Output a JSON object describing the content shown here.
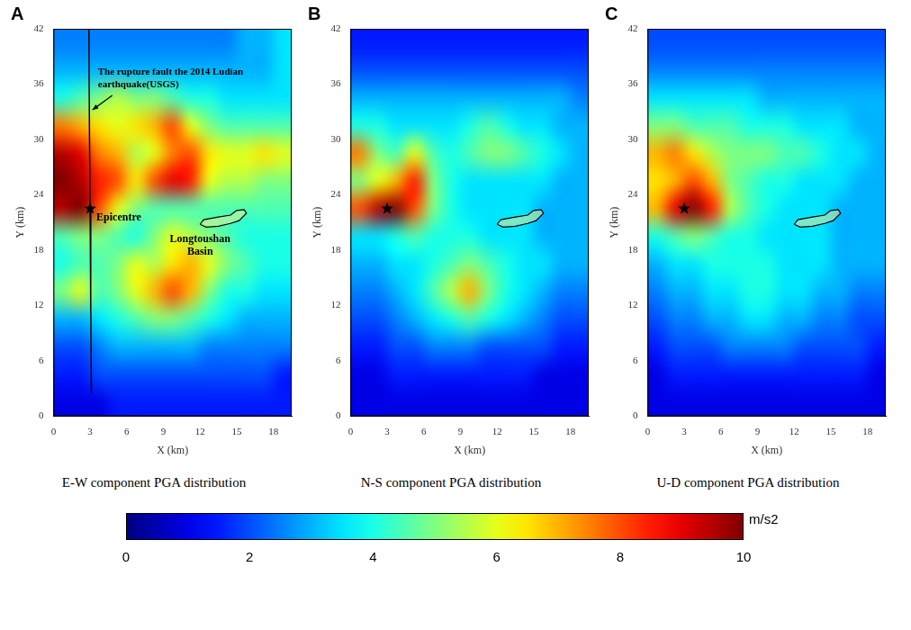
{
  "chart_data": [
    {
      "type": "heatmap",
      "panel": "A",
      "title": "E-W component PGA distribution",
      "x_label": "X (km)",
      "y_label": "Y (km)",
      "xlim": [
        0,
        19.5
      ],
      "xticks": [
        0,
        3,
        6,
        9,
        12,
        15,
        18
      ],
      "ylim": [
        0,
        42
      ],
      "yticks": [
        0,
        6,
        12,
        18,
        24,
        30,
        36,
        42
      ],
      "x_bins": [
        0,
        1.5,
        3,
        4.5,
        6,
        7.5,
        9,
        10.5,
        12,
        13.5,
        15,
        16.5,
        18,
        19.5
      ],
      "y_bins": [
        0,
        3,
        6,
        9,
        12,
        15,
        18,
        21,
        24,
        27,
        30,
        33,
        36,
        39,
        42
      ],
      "cells": [
        [
          1,
          1,
          1,
          1.5,
          1.5,
          1.5,
          1.5,
          1.5,
          1.5,
          1.5,
          1.5,
          1.5,
          1.5
        ],
        [
          1.5,
          1.5,
          2,
          2,
          2,
          2,
          2,
          2,
          2,
          2,
          2,
          2,
          1.5
        ],
        [
          2,
          2,
          2.5,
          3,
          3,
          3,
          3,
          3,
          2.5,
          2.5,
          2.5,
          2.5,
          2.5
        ],
        [
          3,
          3,
          3.5,
          4,
          4.5,
          5,
          5,
          4.5,
          4,
          3.5,
          3,
          3,
          3
        ],
        [
          5,
          6,
          4.5,
          5,
          6,
          7,
          8,
          7,
          5,
          4,
          4,
          3.5,
          3.5
        ],
        [
          4,
          4.5,
          4.5,
          5,
          6,
          5.5,
          6.5,
          7,
          6,
          5,
          4.5,
          4,
          4
        ],
        [
          4.5,
          5,
          5,
          4.5,
          4,
          5,
          6,
          5.5,
          5,
          4.5,
          4,
          4,
          4
        ],
        [
          9.5,
          10,
          8,
          6,
          5,
          4.5,
          4.5,
          4.5,
          4.5,
          4.5,
          4.5,
          4.5,
          4.5
        ],
        [
          10,
          9.5,
          8.5,
          8,
          6.5,
          8,
          9,
          8.5,
          6,
          5.5,
          5.5,
          5,
          5
        ],
        [
          9.5,
          9,
          7.5,
          7,
          5.5,
          6,
          7.5,
          8,
          6.5,
          6,
          6,
          6.5,
          6
        ],
        [
          7.5,
          7,
          6.5,
          6,
          6.5,
          7,
          8,
          6,
          5,
          4.5,
          4.5,
          4.5,
          4.5
        ],
        [
          4,
          4.5,
          5,
          5.5,
          5,
          5,
          4.5,
          4,
          4,
          3.5,
          3.5,
          3.5,
          3.5
        ],
        [
          3,
          3,
          3,
          3,
          3,
          3,
          3,
          3,
          3,
          3,
          3,
          3,
          3.5
        ],
        [
          2.5,
          2.5,
          2.5,
          2.5,
          2.5,
          2.5,
          2.5,
          2.5,
          2.5,
          2.5,
          3,
          3,
          3.5
        ]
      ],
      "fault": {
        "x": [
          2.9,
          2.95,
          3,
          3.05,
          3.1
        ],
        "y": [
          42,
          30,
          22.5,
          12,
          2.5
        ]
      },
      "epicentre": {
        "x": 3,
        "y": 22.5
      },
      "basin": {
        "x": [
          12,
          12.3,
          13.5,
          14.5,
          15,
          15.6,
          15.8,
          15.2,
          14.5,
          13.5,
          12.5
        ],
        "y": [
          20.8,
          21.3,
          21.6,
          21.8,
          22.3,
          22.4,
          22,
          21.2,
          20.9,
          20.6,
          20.5
        ]
      },
      "annotations": {
        "fault": "The rupture fault the 2014 Ludian earthquake(USGS)",
        "epicentre": "Epicentre",
        "basin": "Longtoushan Basin"
      }
    },
    {
      "type": "heatmap",
      "panel": "B",
      "title": "N-S component PGA distribution",
      "x_label": "X (km)",
      "y_label": "Y (km)",
      "xlim": [
        0,
        19.5
      ],
      "xticks": [
        0,
        3,
        6,
        9,
        12,
        15,
        18
      ],
      "ylim": [
        0,
        42
      ],
      "yticks": [
        0,
        6,
        12,
        18,
        24,
        30,
        36,
        42
      ],
      "x_bins": [
        0,
        1.5,
        3,
        4.5,
        6,
        7.5,
        9,
        10.5,
        12,
        13.5,
        15,
        16.5,
        18,
        19.5
      ],
      "y_bins": [
        0,
        3,
        6,
        9,
        12,
        15,
        18,
        21,
        24,
        27,
        30,
        33,
        36,
        39,
        42
      ],
      "cells": [
        [
          1,
          1,
          1,
          1,
          1,
          1,
          1,
          1,
          1,
          1,
          1,
          1,
          1
        ],
        [
          1,
          1,
          1.5,
          1.5,
          1.5,
          1.5,
          1.5,
          1.5,
          1.5,
          1.5,
          1,
          1,
          1
        ],
        [
          1.5,
          1.5,
          2,
          2,
          2.5,
          2.5,
          2.5,
          2,
          2,
          2,
          2,
          1.5,
          1.5
        ],
        [
          2,
          2,
          2.5,
          3,
          3.5,
          4,
          4.5,
          4,
          3.5,
          3,
          2.5,
          2,
          2
        ],
        [
          2.5,
          2.5,
          3,
          3.5,
          4.5,
          5.5,
          7,
          5,
          4,
          3.5,
          3,
          2.5,
          2.5
        ],
        [
          3,
          3,
          3.5,
          3.5,
          4,
          4.5,
          5,
          4.5,
          4,
          3.5,
          3.5,
          3,
          3
        ],
        [
          3.5,
          3.5,
          4,
          4.5,
          4,
          4,
          4,
          3.5,
          3.5,
          3.5,
          3,
          3,
          3
        ],
        [
          8,
          9.5,
          10,
          8,
          5,
          4,
          3.5,
          3.5,
          3.5,
          3.5,
          3,
          3,
          3
        ],
        [
          5,
          6,
          7,
          8.5,
          5,
          4,
          3.5,
          3.5,
          3.5,
          3.5,
          3.5,
          3,
          3
        ],
        [
          7.5,
          5,
          4.5,
          6,
          4.5,
          4,
          4.5,
          5,
          5,
          4.5,
          4,
          3.5,
          3
        ],
        [
          4,
          4,
          3.5,
          3.5,
          3.5,
          3.5,
          4,
          4.5,
          4,
          3.5,
          3.5,
          3,
          3
        ],
        [
          3,
          3,
          3,
          3,
          3,
          3,
          3,
          3,
          3,
          3,
          3,
          3,
          2.5
        ],
        [
          2,
          2,
          2,
          2,
          2,
          2,
          2,
          2,
          2,
          2,
          2,
          2,
          2
        ],
        [
          1.5,
          1.5,
          1.5,
          1.5,
          1.5,
          1.5,
          1.5,
          1.5,
          1.5,
          1.5,
          1.5,
          1.5,
          1.5
        ]
      ],
      "epicentre": {
        "x": 3,
        "y": 22.5
      },
      "basin": {
        "x": [
          12,
          12.3,
          13.5,
          14.5,
          15,
          15.6,
          15.8,
          15.2,
          14.5,
          13.5,
          12.5
        ],
        "y": [
          20.8,
          21.3,
          21.6,
          21.8,
          22.3,
          22.4,
          22,
          21.2,
          20.9,
          20.6,
          20.5
        ]
      }
    },
    {
      "type": "heatmap",
      "panel": "C",
      "title": "U-D component PGA distribution",
      "x_label": "X (km)",
      "y_label": "Y (km)",
      "xlim": [
        0,
        19.5
      ],
      "xticks": [
        0,
        3,
        6,
        9,
        12,
        15,
        18
      ],
      "ylim": [
        0,
        42
      ],
      "yticks": [
        0,
        6,
        12,
        18,
        24,
        30,
        36,
        42
      ],
      "x_bins": [
        0,
        1.5,
        3,
        4.5,
        6,
        7.5,
        9,
        10.5,
        12,
        13.5,
        15,
        16.5,
        18,
        19.5
      ],
      "y_bins": [
        0,
        3,
        6,
        9,
        12,
        15,
        18,
        21,
        24,
        27,
        30,
        33,
        36,
        39,
        42
      ],
      "cells": [
        [
          1,
          1,
          1,
          1,
          1,
          1,
          1,
          1,
          1,
          1,
          1,
          1,
          1
        ],
        [
          1,
          1.5,
          1.5,
          1.5,
          1.5,
          1.5,
          1.5,
          1.5,
          1.5,
          1.5,
          1.5,
          1.5,
          1
        ],
        [
          1.5,
          2,
          2,
          2,
          2.5,
          2.5,
          2.5,
          2.5,
          2,
          2,
          2,
          2,
          1.5
        ],
        [
          2,
          2.5,
          2.5,
          3,
          3,
          3.5,
          3.5,
          3,
          3,
          2.5,
          2.5,
          2,
          2
        ],
        [
          2.5,
          3,
          3,
          3.5,
          3.5,
          4,
          4,
          3.5,
          3.5,
          3,
          3,
          2.5,
          2.5
        ],
        [
          3,
          3.5,
          3.5,
          4,
          4,
          4,
          4,
          3.5,
          3.5,
          3.5,
          3,
          3,
          3
        ],
        [
          4,
          4.5,
          5,
          4.5,
          4,
          4,
          3.5,
          3.5,
          3.5,
          3.5,
          3,
          3,
          3
        ],
        [
          7,
          9,
          10,
          8.5,
          5.5,
          4.5,
          4,
          3.5,
          3.5,
          3.5,
          3,
          3,
          3
        ],
        [
          6.5,
          7,
          8,
          7,
          5,
          4.5,
          4,
          4,
          3.5,
          3.5,
          3.5,
          3,
          3
        ],
        [
          7,
          7.5,
          6.5,
          5.5,
          5,
          5,
          5,
          4.5,
          4.5,
          4,
          3.5,
          3.5,
          3
        ],
        [
          5,
          5,
          4.5,
          4.5,
          4.5,
          4,
          4,
          4,
          3.5,
          3.5,
          3.5,
          3,
          3
        ],
        [
          3.5,
          3.5,
          3.5,
          3.5,
          3.5,
          3.5,
          3,
          3,
          3,
          3,
          3,
          3,
          3
        ],
        [
          2.5,
          2.5,
          2.5,
          2.5,
          2.5,
          2.5,
          2.5,
          2.5,
          2.5,
          2.5,
          2.5,
          2.5,
          2.5
        ],
        [
          2,
          2,
          2,
          2,
          2,
          2,
          2,
          2,
          2,
          2,
          2,
          2,
          2
        ]
      ],
      "epicentre": {
        "x": 3,
        "y": 22.5
      },
      "basin": {
        "x": [
          12,
          12.3,
          13.5,
          14.5,
          15,
          15.6,
          15.8,
          15.2,
          14.5,
          13.5,
          12.5
        ],
        "y": [
          20.8,
          21.3,
          21.6,
          21.8,
          22.3,
          22.4,
          22,
          21.2,
          20.9,
          20.6,
          20.5
        ]
      }
    }
  ],
  "colorbar": {
    "range": [
      0,
      10
    ],
    "ticks": [
      0,
      2,
      4,
      6,
      8,
      10
    ],
    "label": "m/s2"
  }
}
